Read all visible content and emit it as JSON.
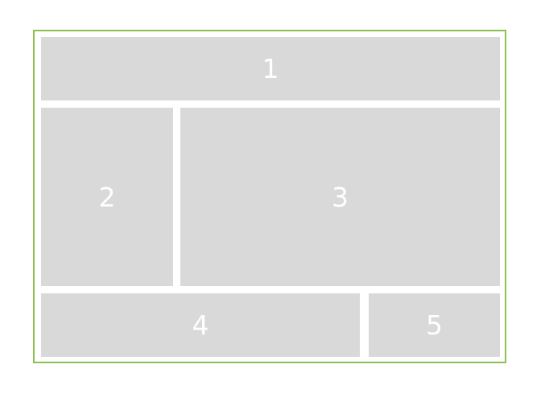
{
  "colors": {
    "frame_border": "#8cc152",
    "region_fill": "#d9d9d9",
    "label": "#ffffff",
    "background": "#ffffff"
  },
  "regions": [
    {
      "label": "1"
    },
    {
      "label": "2"
    },
    {
      "label": "3"
    },
    {
      "label": "4"
    },
    {
      "label": "5"
    }
  ]
}
